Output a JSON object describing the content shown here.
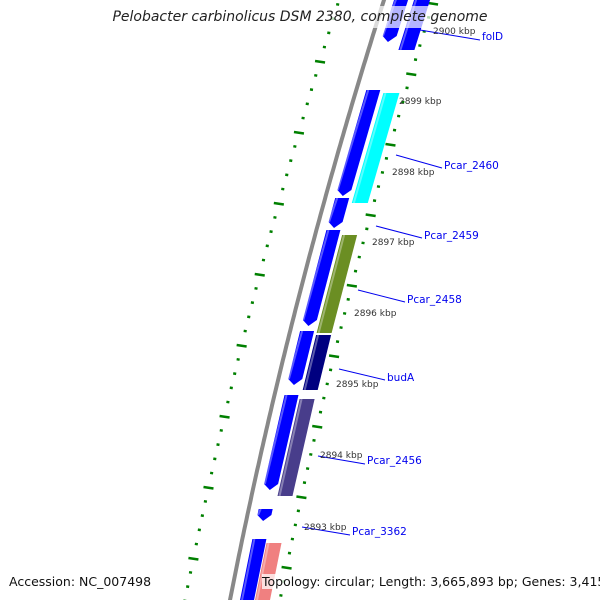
{
  "title": "Pelobacter carbinolicus DSM 2380, complete genome",
  "footer": {
    "accession": "Accession: NC_007498",
    "summary": "Topology: circular; Length: 3,665,893 bp; Genes: 3,415"
  },
  "scale_labels": [
    "2900 kbp",
    "2899 kbp",
    "2898 kbp",
    "2897 kbp",
    "2896 kbp",
    "2895 kbp",
    "2894 kbp",
    "2893 kbp"
  ],
  "gene_labels": [
    "folD",
    "Pcar_2460",
    "Pcar_2459",
    "Pcar_2458",
    "budA",
    "Pcar_2456",
    "Pcar_3362"
  ],
  "colors": {
    "backbone": "#888888",
    "reverse_gene": "#0000ff",
    "folD": "#0000ff",
    "Pcar_2460": "#00ffff",
    "Pcar_2458": "#6b8e23",
    "budA": "#000080",
    "Pcar_2456": "#483d8b",
    "next_gene": "#f08080",
    "tick": "#008000",
    "label": "#0000ee"
  }
}
